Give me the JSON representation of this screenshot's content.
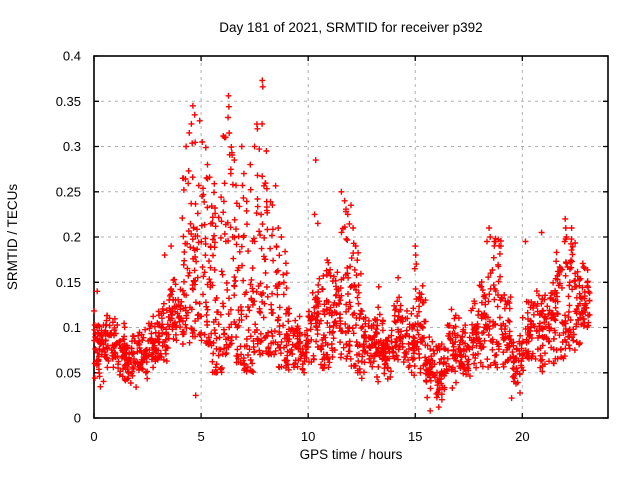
{
  "title": "Day 181 of 2021, SRMTID for receiver p392",
  "colors": {
    "background": "#ffffff",
    "text": "#000000",
    "axis_border": "#000000",
    "grid": "#b0b0b0",
    "marker": "#ff0000"
  },
  "chart_data": {
    "type": "scatter",
    "title": "Day 181 of 2021, SRMTID for receiver p392",
    "xlabel": "GPS time / hours",
    "ylabel": "SRMTID / TECUs",
    "xlim": [
      0,
      24
    ],
    "ylim": [
      0,
      0.4
    ],
    "xtick_values": [
      0,
      5,
      10,
      15,
      20
    ],
    "xtick_labels": [
      "0",
      "5",
      "10",
      "15",
      "20"
    ],
    "ytick_values": [
      0,
      0.05,
      0.1,
      0.15,
      0.2,
      0.25,
      0.3,
      0.35,
      0.4
    ],
    "ytick_labels": [
      "0",
      "0.05",
      "0.1",
      "0.15",
      "0.2",
      "0.25",
      "0.3",
      "0.35",
      "0.4"
    ],
    "grid": "dashed gray, both axes, mirrored inward ticks",
    "legend": "none",
    "marker": "plus",
    "marker_color": "#ff0000",
    "x_data_max": 23.15,
    "density_bins": {
      "bin_width_hours": 0.5,
      "columns": [
        "start_hour",
        "min_value",
        "max_value",
        "count"
      ],
      "rows": [
        [
          0.0,
          0.03,
          0.12,
          48
        ],
        [
          0.5,
          0.04,
          0.135,
          44
        ],
        [
          1.0,
          0.035,
          0.11,
          40
        ],
        [
          1.5,
          0.03,
          0.095,
          40
        ],
        [
          2.0,
          0.04,
          0.1,
          40
        ],
        [
          2.5,
          0.05,
          0.115,
          42
        ],
        [
          3.0,
          0.055,
          0.13,
          42
        ],
        [
          3.5,
          0.07,
          0.16,
          42
        ],
        [
          4.0,
          0.08,
          0.28,
          46
        ],
        [
          4.5,
          0.09,
          0.33,
          50
        ],
        [
          5.0,
          0.08,
          0.3,
          48
        ],
        [
          5.5,
          0.05,
          0.26,
          48
        ],
        [
          6.0,
          0.07,
          0.34,
          48
        ],
        [
          6.5,
          0.06,
          0.26,
          46
        ],
        [
          7.0,
          0.05,
          0.26,
          44
        ],
        [
          7.5,
          0.07,
          0.33,
          46
        ],
        [
          8.0,
          0.07,
          0.26,
          44
        ],
        [
          8.5,
          0.055,
          0.19,
          42
        ],
        [
          9.0,
          0.045,
          0.14,
          40
        ],
        [
          9.5,
          0.04,
          0.12,
          40
        ],
        [
          10.0,
          0.05,
          0.16,
          44
        ],
        [
          10.5,
          0.055,
          0.18,
          44
        ],
        [
          11.0,
          0.06,
          0.18,
          44
        ],
        [
          11.5,
          0.065,
          0.235,
          46
        ],
        [
          12.0,
          0.05,
          0.21,
          44
        ],
        [
          12.5,
          0.035,
          0.13,
          44
        ],
        [
          13.0,
          0.03,
          0.13,
          42
        ],
        [
          13.5,
          0.03,
          0.115,
          40
        ],
        [
          14.0,
          0.035,
          0.15,
          40
        ],
        [
          14.5,
          0.04,
          0.135,
          40
        ],
        [
          15.0,
          0.045,
          0.16,
          42
        ],
        [
          15.5,
          0.015,
          0.095,
          40
        ],
        [
          16.0,
          0.01,
          0.09,
          40
        ],
        [
          16.5,
          0.03,
          0.13,
          40
        ],
        [
          17.0,
          0.035,
          0.12,
          40
        ],
        [
          17.5,
          0.045,
          0.135,
          40
        ],
        [
          18.0,
          0.05,
          0.16,
          42
        ],
        [
          18.5,
          0.055,
          0.21,
          44
        ],
        [
          19.0,
          0.04,
          0.14,
          40
        ],
        [
          19.5,
          0.025,
          0.105,
          40
        ],
        [
          20.0,
          0.04,
          0.14,
          40
        ],
        [
          20.5,
          0.05,
          0.15,
          40
        ],
        [
          21.0,
          0.05,
          0.16,
          42
        ],
        [
          21.5,
          0.065,
          0.19,
          44
        ],
        [
          22.0,
          0.075,
          0.2,
          48
        ],
        [
          22.5,
          0.07,
          0.185,
          48
        ],
        [
          23.0,
          0.08,
          0.17,
          14
        ]
      ]
    },
    "outlier_points": [
      [
        7.86,
        0.373
      ],
      [
        7.88,
        0.366
      ],
      [
        6.28,
        0.356
      ],
      [
        6.3,
        0.344
      ],
      [
        6.26,
        0.332
      ],
      [
        4.62,
        0.345
      ],
      [
        4.7,
        0.335
      ],
      [
        4.55,
        0.325
      ],
      [
        4.45,
        0.315
      ],
      [
        6.1,
        0.31
      ],
      [
        5.05,
        0.305
      ],
      [
        4.3,
        0.3
      ],
      [
        6.9,
        0.3
      ],
      [
        7.5,
        0.3
      ],
      [
        8.05,
        0.295
      ],
      [
        6.55,
        0.285
      ],
      [
        10.35,
        0.285
      ],
      [
        5.3,
        0.28
      ],
      [
        7.3,
        0.28
      ],
      [
        7.0,
        0.27
      ],
      [
        11.55,
        0.25
      ],
      [
        11.7,
        0.24
      ],
      [
        12.0,
        0.235
      ],
      [
        11.85,
        0.225
      ],
      [
        10.3,
        0.225
      ],
      [
        10.45,
        0.215
      ],
      [
        12.1,
        0.21
      ],
      [
        8.6,
        0.21
      ],
      [
        8.75,
        0.2
      ],
      [
        9.0,
        0.16
      ],
      [
        3.3,
        0.18
      ],
      [
        3.6,
        0.19
      ],
      [
        0.15,
        0.14
      ],
      [
        13.3,
        0.145
      ],
      [
        14.2,
        0.155
      ],
      [
        15.0,
        0.19
      ],
      [
        15.02,
        0.18
      ],
      [
        15.05,
        0.17
      ],
      [
        14.98,
        0.165
      ],
      [
        18.45,
        0.21
      ],
      [
        18.5,
        0.2
      ],
      [
        18.35,
        0.195
      ],
      [
        19.0,
        0.19
      ],
      [
        20.9,
        0.205
      ],
      [
        20.15,
        0.195
      ],
      [
        22.0,
        0.22
      ],
      [
        22.03,
        0.21
      ],
      [
        22.06,
        0.2
      ],
      [
        21.98,
        0.195
      ],
      [
        22.3,
        0.21
      ],
      [
        4.75,
        0.025
      ],
      [
        15.7,
        0.008
      ],
      [
        16.1,
        0.012
      ],
      [
        19.5,
        0.022
      ]
    ]
  }
}
